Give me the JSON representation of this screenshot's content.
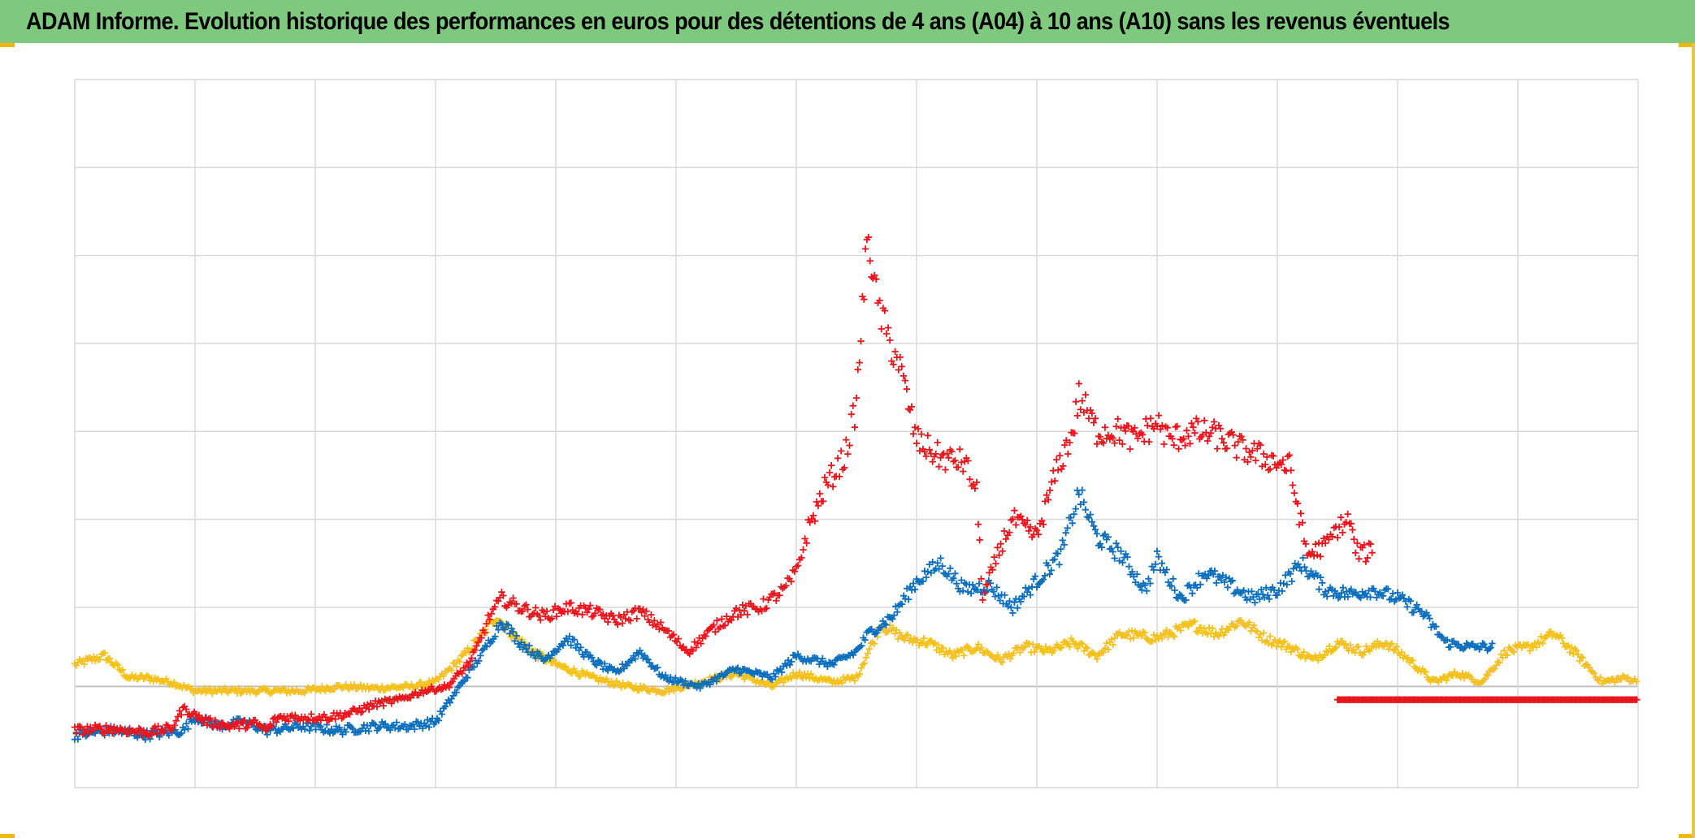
{
  "header": {
    "title": "ADAM Informe. Evolution historique des performances en euros pour des détentions de 4 ans (A04) à 10 ans (A10) sans les revenus éventuels"
  },
  "colors": {
    "title_bar": "#7ec97e",
    "grid": "#d9d9d9",
    "accent_corner": "#f2b705"
  },
  "chart_data": {
    "type": "scatter",
    "marker": "plus",
    "grid": true,
    "x_range": [
      0,
      13
    ],
    "y_range": [
      -1.15,
      6.9
    ],
    "x_grid_count": 13,
    "y_gridlines": [
      5.9,
      4.9,
      3.9,
      2.9,
      1.9,
      0.9,
      0.0,
      -1.15
    ],
    "zero_line": 0.0,
    "series": [
      {
        "color": "#f4c01e",
        "points": [
          [
            0,
            0.25
          ],
          [
            0.25,
            0.35
          ],
          [
            0.45,
            0.1
          ],
          [
            0.6,
            0.1
          ],
          [
            0.8,
            0.05
          ],
          [
            1.0,
            -0.05
          ],
          [
            1.3,
            -0.05
          ],
          [
            1.6,
            -0.05
          ],
          [
            1.9,
            -0.05
          ],
          [
            2.2,
            0.0
          ],
          [
            2.5,
            -0.02
          ],
          [
            2.8,
            0.0
          ],
          [
            3.0,
            0.05
          ],
          [
            3.2,
            0.3
          ],
          [
            3.4,
            0.6
          ],
          [
            3.5,
            0.8
          ],
          [
            3.6,
            0.65
          ],
          [
            3.8,
            0.4
          ],
          [
            4.0,
            0.25
          ],
          [
            4.3,
            0.1
          ],
          [
            4.6,
            0.0
          ],
          [
            4.9,
            -0.05
          ],
          [
            5.2,
            0.05
          ],
          [
            5.5,
            0.15
          ],
          [
            5.8,
            0.0
          ],
          [
            6.0,
            0.15
          ],
          [
            6.3,
            0.05
          ],
          [
            6.5,
            0.1
          ],
          [
            6.7,
            0.7
          ],
          [
            6.9,
            0.55
          ],
          [
            7.1,
            0.5
          ],
          [
            7.3,
            0.35
          ],
          [
            7.5,
            0.45
          ],
          [
            7.7,
            0.3
          ],
          [
            7.9,
            0.45
          ],
          [
            8.1,
            0.4
          ],
          [
            8.3,
            0.5
          ],
          [
            8.5,
            0.35
          ],
          [
            8.7,
            0.6
          ],
          [
            9.0,
            0.55
          ],
          [
            9.3,
            0.7
          ],
          [
            9.5,
            0.6
          ],
          [
            9.7,
            0.75
          ],
          [
            9.9,
            0.55
          ],
          [
            10.1,
            0.45
          ],
          [
            10.3,
            0.3
          ],
          [
            10.5,
            0.5
          ],
          [
            10.7,
            0.4
          ],
          [
            10.9,
            0.5
          ],
          [
            11.1,
            0.3
          ],
          [
            11.3,
            0.05
          ],
          [
            11.5,
            0.15
          ],
          [
            11.7,
            0.05
          ],
          [
            11.9,
            0.4
          ],
          [
            12.1,
            0.45
          ],
          [
            12.3,
            0.6
          ],
          [
            12.5,
            0.35
          ],
          [
            12.7,
            0.05
          ],
          [
            12.9,
            0.1
          ],
          [
            13.0,
            0.05
          ]
        ]
      },
      {
        "color": "#0a6ebd",
        "points": [
          [
            0,
            -0.55
          ],
          [
            0.3,
            -0.5
          ],
          [
            0.6,
            -0.55
          ],
          [
            0.9,
            -0.5
          ],
          [
            1.0,
            -0.35
          ],
          [
            1.2,
            -0.45
          ],
          [
            1.4,
            -0.4
          ],
          [
            1.6,
            -0.5
          ],
          [
            1.9,
            -0.45
          ],
          [
            2.2,
            -0.5
          ],
          [
            2.5,
            -0.45
          ],
          [
            2.8,
            -0.45
          ],
          [
            3.0,
            -0.4
          ],
          [
            3.2,
            0.0
          ],
          [
            3.4,
            0.4
          ],
          [
            3.55,
            0.75
          ],
          [
            3.7,
            0.5
          ],
          [
            3.9,
            0.3
          ],
          [
            4.1,
            0.55
          ],
          [
            4.3,
            0.3
          ],
          [
            4.5,
            0.15
          ],
          [
            4.7,
            0.4
          ],
          [
            4.9,
            0.1
          ],
          [
            5.2,
            0.0
          ],
          [
            5.5,
            0.2
          ],
          [
            5.8,
            0.1
          ],
          [
            6.0,
            0.35
          ],
          [
            6.3,
            0.25
          ],
          [
            6.5,
            0.4
          ],
          [
            6.6,
            0.6
          ],
          [
            6.8,
            0.8
          ],
          [
            7.0,
            1.2
          ],
          [
            7.2,
            1.4
          ],
          [
            7.4,
            1.1
          ],
          [
            7.6,
            1.15
          ],
          [
            7.8,
            0.9
          ],
          [
            8.0,
            1.2
          ],
          [
            8.2,
            1.5
          ],
          [
            8.35,
            2.2
          ],
          [
            8.5,
            1.7
          ],
          [
            8.7,
            1.5
          ],
          [
            8.9,
            1.1
          ],
          [
            9.0,
            1.45
          ],
          [
            9.2,
            1.0
          ],
          [
            9.4,
            1.3
          ],
          [
            9.6,
            1.15
          ],
          [
            9.8,
            1.0
          ],
          [
            10.0,
            1.1
          ],
          [
            10.2,
            1.4
          ],
          [
            10.4,
            1.1
          ],
          [
            10.6,
            1.05
          ],
          [
            10.8,
            1.1
          ],
          [
            11.0,
            1.0
          ],
          [
            11.2,
            0.85
          ],
          [
            11.4,
            0.5
          ],
          [
            11.6,
            0.45
          ],
          [
            11.8,
            0.45
          ]
        ]
      },
      {
        "color": "#e8161c",
        "points": [
          [
            0,
            -0.5
          ],
          [
            0.3,
            -0.48
          ],
          [
            0.6,
            -0.52
          ],
          [
            0.8,
            -0.48
          ],
          [
            0.9,
            -0.25
          ],
          [
            1.1,
            -0.4
          ],
          [
            1.3,
            -0.45
          ],
          [
            1.5,
            -0.42
          ],
          [
            1.6,
            -0.5
          ],
          [
            1.65,
            -0.4
          ],
          [
            1.7,
            -0.35
          ],
          [
            1.9,
            -0.35
          ],
          [
            2.1,
            -0.35
          ],
          [
            2.3,
            -0.3
          ],
          [
            2.5,
            -0.2
          ],
          [
            2.7,
            -0.15
          ],
          [
            2.9,
            -0.05
          ],
          [
            3.1,
            0.0
          ],
          [
            3.3,
            0.3
          ],
          [
            3.45,
            0.8
          ],
          [
            3.55,
            1.0
          ],
          [
            3.7,
            0.9
          ],
          [
            3.9,
            0.8
          ],
          [
            4.1,
            0.9
          ],
          [
            4.3,
            0.85
          ],
          [
            4.5,
            0.75
          ],
          [
            4.7,
            0.85
          ],
          [
            4.9,
            0.65
          ],
          [
            5.1,
            0.4
          ],
          [
            5.3,
            0.65
          ],
          [
            5.5,
            0.85
          ],
          [
            5.7,
            0.9
          ],
          [
            5.9,
            1.1
          ],
          [
            6.0,
            1.3
          ],
          [
            6.1,
            1.8
          ],
          [
            6.25,
            2.3
          ],
          [
            6.4,
            2.6
          ],
          [
            6.5,
            3.2
          ],
          [
            6.55,
            4.3
          ],
          [
            6.6,
            5.2
          ],
          [
            6.65,
            4.5
          ],
          [
            6.75,
            4.0
          ],
          [
            6.85,
            3.7
          ],
          [
            7.0,
            2.8
          ],
          [
            7.2,
            2.6
          ],
          [
            7.4,
            2.55
          ],
          [
            7.5,
            2.2
          ],
          [
            7.55,
            1.0
          ],
          [
            7.7,
            1.6
          ],
          [
            7.8,
            1.9
          ],
          [
            8.0,
            1.7
          ],
          [
            8.15,
            2.4
          ],
          [
            8.3,
            2.9
          ],
          [
            8.35,
            3.3
          ],
          [
            8.5,
            2.9
          ],
          [
            8.7,
            2.9
          ],
          [
            8.8,
            2.8
          ],
          [
            9.0,
            3.0
          ],
          [
            9.1,
            2.8
          ],
          [
            9.3,
            2.9
          ],
          [
            9.5,
            2.85
          ],
          [
            9.7,
            2.7
          ],
          [
            9.9,
            2.6
          ],
          [
            10.1,
            2.5
          ],
          [
            10.25,
            1.5
          ],
          [
            10.4,
            1.6
          ],
          [
            10.5,
            1.8
          ],
          [
            10.6,
            1.9
          ],
          [
            10.65,
            1.55
          ],
          [
            10.75,
            1.5
          ],
          [
            10.8,
            1.65
          ]
        ]
      },
      {
        "color": "#e8161c",
        "points": [
          [
            10.5,
            -0.15
          ],
          [
            11.0,
            -0.15
          ],
          [
            11.5,
            -0.15
          ],
          [
            12.0,
            -0.15
          ],
          [
            12.5,
            -0.15
          ],
          [
            13.0,
            -0.15
          ]
        ]
      }
    ]
  }
}
